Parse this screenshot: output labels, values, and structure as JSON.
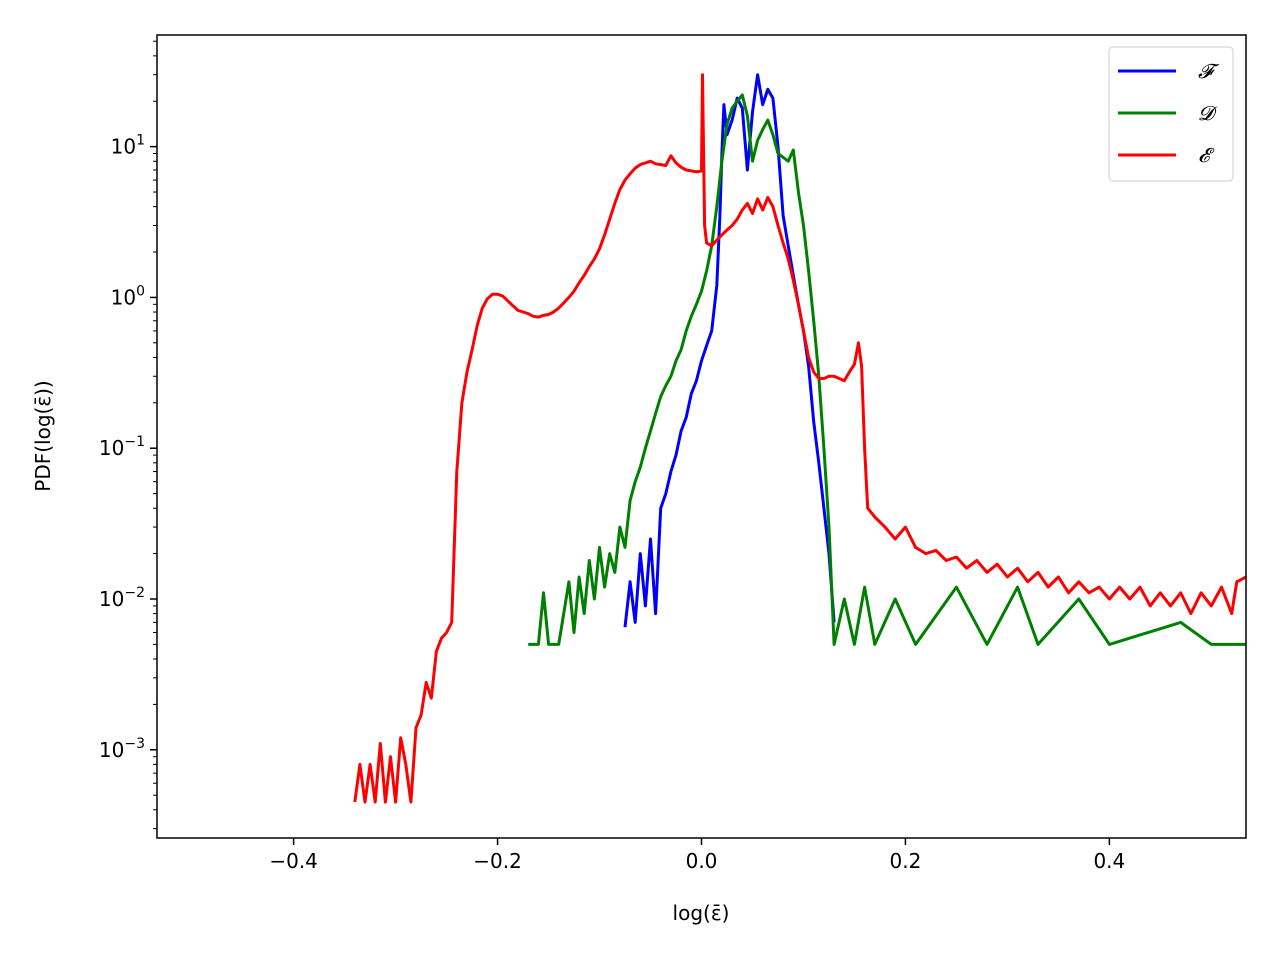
{
  "chart_data": {
    "type": "line",
    "xlabel": "log(ε̄)",
    "ylabel": "PDF(log(ε̄))",
    "xlim": [
      -0.534,
      0.534
    ],
    "ylim": [
      0.00026,
      55
    ],
    "yscale": "log",
    "x_ticks": [
      -0.4,
      -0.2,
      0.0,
      0.2,
      0.4
    ],
    "x_tick_labels": [
      "−0.4",
      "−0.2",
      "0.0",
      "0.2",
      "0.4"
    ],
    "y_ticks": [
      0.001,
      0.01,
      0.1,
      1,
      10
    ],
    "y_tick_labels": [
      {
        "base": "10",
        "exp": "−3"
      },
      {
        "base": "10",
        "exp": "−2"
      },
      {
        "base": "10",
        "exp": "−1"
      },
      {
        "base": "10",
        "exp": "0"
      },
      {
        "base": "10",
        "exp": "1"
      }
    ],
    "grid": false,
    "legend_position": "top-right",
    "series": [
      {
        "name": "𝓕",
        "color": "#0000ff",
        "points": [
          [
            -0.075,
            0.0065
          ],
          [
            -0.07,
            0.013
          ],
          [
            -0.065,
            0.007
          ],
          [
            -0.06,
            0.02
          ],
          [
            -0.055,
            0.009
          ],
          [
            -0.05,
            0.025
          ],
          [
            -0.045,
            0.008
          ],
          [
            -0.04,
            0.04
          ],
          [
            -0.035,
            0.05
          ],
          [
            -0.03,
            0.07
          ],
          [
            -0.025,
            0.09
          ],
          [
            -0.02,
            0.13
          ],
          [
            -0.015,
            0.16
          ],
          [
            -0.01,
            0.23
          ],
          [
            -0.005,
            0.28
          ],
          [
            0.0,
            0.38
          ],
          [
            0.005,
            0.48
          ],
          [
            0.01,
            0.6
          ],
          [
            0.015,
            1.2
          ],
          [
            0.018,
            3.5
          ],
          [
            0.02,
            9.0
          ],
          [
            0.022,
            19.0
          ],
          [
            0.025,
            12.0
          ],
          [
            0.03,
            15.0
          ],
          [
            0.035,
            21.0
          ],
          [
            0.04,
            18.0
          ],
          [
            0.045,
            7.0
          ],
          [
            0.05,
            17.0
          ],
          [
            0.055,
            30.0
          ],
          [
            0.06,
            19.0
          ],
          [
            0.065,
            24.0
          ],
          [
            0.07,
            21.0
          ],
          [
            0.075,
            10.0
          ],
          [
            0.08,
            3.5
          ],
          [
            0.085,
            2.2
          ],
          [
            0.09,
            1.4
          ],
          [
            0.095,
            0.9
          ],
          [
            0.1,
            0.6
          ],
          [
            0.105,
            0.35
          ],
          [
            0.11,
            0.15
          ],
          [
            0.115,
            0.08
          ],
          [
            0.12,
            0.04
          ],
          [
            0.125,
            0.02
          ],
          [
            0.13,
            0.007
          ]
        ]
      },
      {
        "name": "𝓓",
        "color": "#008000",
        "points": [
          [
            -0.17,
            0.005
          ],
          [
            -0.16,
            0.005
          ],
          [
            -0.155,
            0.011
          ],
          [
            -0.15,
            0.005
          ],
          [
            -0.14,
            0.005
          ],
          [
            -0.13,
            0.013
          ],
          [
            -0.125,
            0.006
          ],
          [
            -0.12,
            0.014
          ],
          [
            -0.115,
            0.008
          ],
          [
            -0.11,
            0.018
          ],
          [
            -0.105,
            0.01
          ],
          [
            -0.1,
            0.022
          ],
          [
            -0.095,
            0.012
          ],
          [
            -0.09,
            0.02
          ],
          [
            -0.085,
            0.015
          ],
          [
            -0.08,
            0.03
          ],
          [
            -0.075,
            0.022
          ],
          [
            -0.07,
            0.045
          ],
          [
            -0.065,
            0.06
          ],
          [
            -0.06,
            0.075
          ],
          [
            -0.055,
            0.1
          ],
          [
            -0.05,
            0.13
          ],
          [
            -0.045,
            0.17
          ],
          [
            -0.04,
            0.22
          ],
          [
            -0.035,
            0.26
          ],
          [
            -0.03,
            0.3
          ],
          [
            -0.025,
            0.38
          ],
          [
            -0.02,
            0.45
          ],
          [
            -0.015,
            0.6
          ],
          [
            -0.01,
            0.75
          ],
          [
            -0.005,
            0.9
          ],
          [
            0.0,
            1.1
          ],
          [
            0.005,
            1.5
          ],
          [
            0.01,
            2.2
          ],
          [
            0.015,
            4.0
          ],
          [
            0.02,
            8.0
          ],
          [
            0.025,
            14.0
          ],
          [
            0.03,
            18.0
          ],
          [
            0.035,
            20.0
          ],
          [
            0.04,
            22.0
          ],
          [
            0.045,
            16.0
          ],
          [
            0.05,
            8.0
          ],
          [
            0.055,
            11.0
          ],
          [
            0.06,
            13.0
          ],
          [
            0.065,
            15.0
          ],
          [
            0.07,
            12.0
          ],
          [
            0.075,
            9.0
          ],
          [
            0.08,
            8.5
          ],
          [
            0.085,
            8.0
          ],
          [
            0.09,
            9.5
          ],
          [
            0.095,
            5.0
          ],
          [
            0.1,
            3.0
          ],
          [
            0.105,
            1.5
          ],
          [
            0.11,
            0.7
          ],
          [
            0.115,
            0.3
          ],
          [
            0.12,
            0.1
          ],
          [
            0.125,
            0.03
          ],
          [
            0.13,
            0.005
          ],
          [
            0.14,
            0.01
          ],
          [
            0.15,
            0.005
          ],
          [
            0.16,
            0.012
          ],
          [
            0.17,
            0.005
          ],
          [
            0.19,
            0.01
          ],
          [
            0.21,
            0.005
          ],
          [
            0.25,
            0.012
          ],
          [
            0.28,
            0.005
          ],
          [
            0.31,
            0.012
          ],
          [
            0.33,
            0.005
          ],
          [
            0.37,
            0.01
          ],
          [
            0.4,
            0.005
          ],
          [
            0.47,
            0.007
          ],
          [
            0.5,
            0.005
          ],
          [
            0.534,
            0.005
          ]
        ]
      },
      {
        "name": "𝓔",
        "color": "#ff0000",
        "points": [
          [
            -0.34,
            0.00045
          ],
          [
            -0.335,
            0.0008
          ],
          [
            -0.33,
            0.00045
          ],
          [
            -0.325,
            0.0008
          ],
          [
            -0.32,
            0.00045
          ],
          [
            -0.315,
            0.0011
          ],
          [
            -0.31,
            0.00045
          ],
          [
            -0.305,
            0.0009
          ],
          [
            -0.3,
            0.00045
          ],
          [
            -0.295,
            0.0012
          ],
          [
            -0.29,
            0.0008
          ],
          [
            -0.285,
            0.00045
          ],
          [
            -0.28,
            0.0014
          ],
          [
            -0.275,
            0.0017
          ],
          [
            -0.27,
            0.0028
          ],
          [
            -0.265,
            0.0022
          ],
          [
            -0.26,
            0.0045
          ],
          [
            -0.255,
            0.0055
          ],
          [
            -0.25,
            0.006
          ],
          [
            -0.245,
            0.007
          ],
          [
            -0.24,
            0.07
          ],
          [
            -0.235,
            0.2
          ],
          [
            -0.23,
            0.32
          ],
          [
            -0.225,
            0.45
          ],
          [
            -0.22,
            0.65
          ],
          [
            -0.215,
            0.85
          ],
          [
            -0.21,
            0.98
          ],
          [
            -0.205,
            1.05
          ],
          [
            -0.2,
            1.05
          ],
          [
            -0.195,
            1.02
          ],
          [
            -0.19,
            0.95
          ],
          [
            -0.185,
            0.88
          ],
          [
            -0.18,
            0.82
          ],
          [
            -0.175,
            0.8
          ],
          [
            -0.17,
            0.78
          ],
          [
            -0.165,
            0.75
          ],
          [
            -0.16,
            0.74
          ],
          [
            -0.155,
            0.76
          ],
          [
            -0.15,
            0.77
          ],
          [
            -0.145,
            0.8
          ],
          [
            -0.14,
            0.85
          ],
          [
            -0.135,
            0.92
          ],
          [
            -0.13,
            1.0
          ],
          [
            -0.125,
            1.1
          ],
          [
            -0.12,
            1.25
          ],
          [
            -0.115,
            1.4
          ],
          [
            -0.11,
            1.6
          ],
          [
            -0.105,
            1.8
          ],
          [
            -0.1,
            2.1
          ],
          [
            -0.095,
            2.6
          ],
          [
            -0.09,
            3.3
          ],
          [
            -0.085,
            4.2
          ],
          [
            -0.08,
            5.2
          ],
          [
            -0.075,
            6.0
          ],
          [
            -0.07,
            6.6
          ],
          [
            -0.065,
            7.2
          ],
          [
            -0.06,
            7.6
          ],
          [
            -0.055,
            7.8
          ],
          [
            -0.05,
            8.0
          ],
          [
            -0.045,
            7.7
          ],
          [
            -0.04,
            7.6
          ],
          [
            -0.035,
            7.5
          ],
          [
            -0.03,
            8.7
          ],
          [
            -0.025,
            7.8
          ],
          [
            -0.02,
            7.3
          ],
          [
            -0.015,
            7.0
          ],
          [
            -0.01,
            6.9
          ],
          [
            -0.005,
            6.8
          ],
          [
            0.0,
            6.9
          ],
          [
            0.001,
            30.0
          ],
          [
            0.003,
            3.0
          ],
          [
            0.005,
            2.3
          ],
          [
            0.01,
            2.2
          ],
          [
            0.015,
            2.4
          ],
          [
            0.02,
            2.6
          ],
          [
            0.025,
            2.8
          ],
          [
            0.03,
            3.0
          ],
          [
            0.035,
            3.3
          ],
          [
            0.04,
            3.8
          ],
          [
            0.045,
            4.2
          ],
          [
            0.05,
            3.6
          ],
          [
            0.055,
            4.5
          ],
          [
            0.06,
            3.8
          ],
          [
            0.065,
            4.6
          ],
          [
            0.07,
            4.0
          ],
          [
            0.075,
            3.0
          ],
          [
            0.08,
            2.3
          ],
          [
            0.085,
            1.8
          ],
          [
            0.09,
            1.3
          ],
          [
            0.095,
            0.9
          ],
          [
            0.1,
            0.6
          ],
          [
            0.105,
            0.4
          ],
          [
            0.11,
            0.32
          ],
          [
            0.115,
            0.29
          ],
          [
            0.12,
            0.29
          ],
          [
            0.125,
            0.3
          ],
          [
            0.13,
            0.3
          ],
          [
            0.135,
            0.29
          ],
          [
            0.14,
            0.28
          ],
          [
            0.145,
            0.32
          ],
          [
            0.15,
            0.36
          ],
          [
            0.154,
            0.5
          ],
          [
            0.157,
            0.35
          ],
          [
            0.16,
            0.1
          ],
          [
            0.163,
            0.04
          ],
          [
            0.17,
            0.035
          ],
          [
            0.18,
            0.03
          ],
          [
            0.19,
            0.025
          ],
          [
            0.2,
            0.03
          ],
          [
            0.21,
            0.022
          ],
          [
            0.22,
            0.02
          ],
          [
            0.23,
            0.021
          ],
          [
            0.24,
            0.018
          ],
          [
            0.25,
            0.019
          ],
          [
            0.26,
            0.016
          ],
          [
            0.27,
            0.018
          ],
          [
            0.28,
            0.015
          ],
          [
            0.29,
            0.017
          ],
          [
            0.3,
            0.014
          ],
          [
            0.31,
            0.016
          ],
          [
            0.32,
            0.013
          ],
          [
            0.33,
            0.015
          ],
          [
            0.34,
            0.012
          ],
          [
            0.35,
            0.014
          ],
          [
            0.36,
            0.011
          ],
          [
            0.37,
            0.013
          ],
          [
            0.38,
            0.011
          ],
          [
            0.39,
            0.012
          ],
          [
            0.4,
            0.01
          ],
          [
            0.41,
            0.012
          ],
          [
            0.42,
            0.01
          ],
          [
            0.43,
            0.012
          ],
          [
            0.44,
            0.009
          ],
          [
            0.45,
            0.011
          ],
          [
            0.46,
            0.009
          ],
          [
            0.47,
            0.011
          ],
          [
            0.48,
            0.008
          ],
          [
            0.49,
            0.011
          ],
          [
            0.5,
            0.009
          ],
          [
            0.51,
            0.012
          ],
          [
            0.52,
            0.008
          ],
          [
            0.525,
            0.013
          ],
          [
            0.534,
            0.014
          ]
        ]
      }
    ]
  }
}
